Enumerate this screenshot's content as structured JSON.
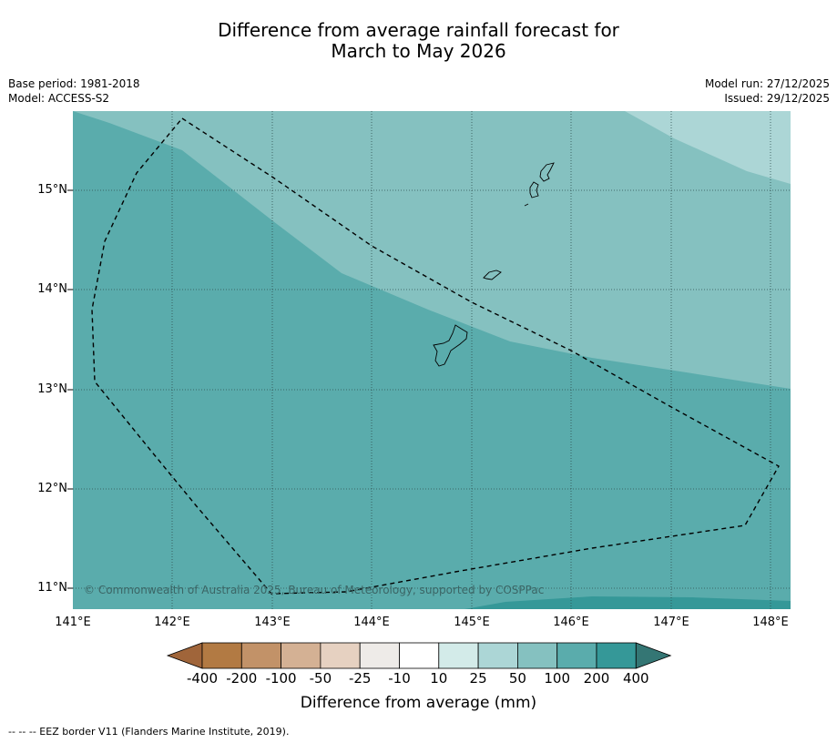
{
  "title_line1": "Difference from average rainfall forecast for",
  "title_line2": "March to May 2026",
  "base_period": "Base period: 1981-2018",
  "model": "Model: ACCESS-S2",
  "model_run": "Model run: 27/12/2025",
  "issued": "Issued: 29/12/2025",
  "lat_labels": [
    "15°N",
    "14°N",
    "13°N",
    "12°N",
    "11°N"
  ],
  "lon_labels": [
    "141°E",
    "142°E",
    "143°E",
    "144°E",
    "145°E",
    "146°E",
    "147°E",
    "148°E"
  ],
  "copyright": "© Commonwealth of Australia 2025, Bureau of Meteorology, supported by COSPPac",
  "colorbar": {
    "ticks": [
      "-400",
      "-200",
      "-100",
      "-50",
      "-25",
      "-10",
      "10",
      "25",
      "50",
      "100",
      "200",
      "400"
    ],
    "title": "Difference from average (mm)",
    "colors": [
      "#a0653a",
      "#b27a43",
      "#c29268",
      "#d4b194",
      "#e6d1c1",
      "#eeebe8",
      "#ffffff",
      "#d3ebe9",
      "#acd6d6",
      "#85c1c0",
      "#5aacac",
      "#359898",
      "#347674"
    ]
  },
  "footnote": "--  --  -- EEZ border V11 (Flanders Marine Institute, 2019)."
}
